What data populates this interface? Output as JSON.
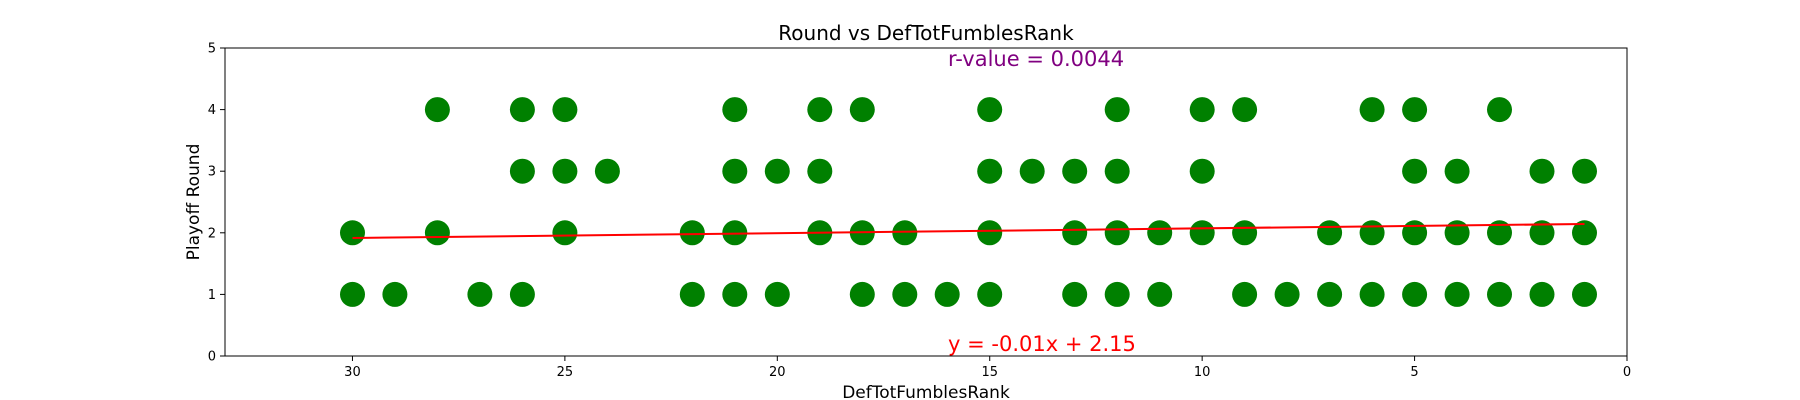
{
  "chart_data": {
    "type": "scatter",
    "title": "Round vs DefTotFumblesRank",
    "xlabel": "DefTotFumblesRank",
    "ylabel": "Playoff Round",
    "xlim": [
      33,
      0
    ],
    "ylim": [
      0,
      5
    ],
    "x_ticks": [
      30,
      25,
      20,
      15,
      10,
      5,
      0
    ],
    "y_ticks": [
      0,
      1,
      2,
      3,
      4,
      5
    ],
    "grid": false,
    "points": [
      [
        28,
        4
      ],
      [
        26,
        4
      ],
      [
        25,
        4
      ],
      [
        21,
        4
      ],
      [
        19,
        4
      ],
      [
        18,
        4
      ],
      [
        15,
        4
      ],
      [
        12,
        4
      ],
      [
        10,
        4
      ],
      [
        9,
        4
      ],
      [
        6,
        4
      ],
      [
        5,
        4
      ],
      [
        3,
        4
      ],
      [
        26,
        3
      ],
      [
        25,
        3
      ],
      [
        24,
        3
      ],
      [
        21,
        3
      ],
      [
        20,
        3
      ],
      [
        19,
        3
      ],
      [
        15,
        3
      ],
      [
        14,
        3
      ],
      [
        13,
        3
      ],
      [
        12,
        3
      ],
      [
        10,
        3
      ],
      [
        5,
        3
      ],
      [
        4,
        3
      ],
      [
        2,
        3
      ],
      [
        1,
        3
      ],
      [
        30,
        2
      ],
      [
        28,
        2
      ],
      [
        25,
        2
      ],
      [
        22,
        2
      ],
      [
        21,
        2
      ],
      [
        19,
        2
      ],
      [
        18,
        2
      ],
      [
        17,
        2
      ],
      [
        15,
        2
      ],
      [
        13,
        2
      ],
      [
        12,
        2
      ],
      [
        11,
        2
      ],
      [
        10,
        2
      ],
      [
        9,
        2
      ],
      [
        7,
        2
      ],
      [
        6,
        2
      ],
      [
        5,
        2
      ],
      [
        4,
        2
      ],
      [
        3,
        2
      ],
      [
        2,
        2
      ],
      [
        1,
        2
      ],
      [
        30,
        1
      ],
      [
        29,
        1
      ],
      [
        27,
        1
      ],
      [
        26,
        1
      ],
      [
        22,
        1
      ],
      [
        21,
        1
      ],
      [
        20,
        1
      ],
      [
        18,
        1
      ],
      [
        17,
        1
      ],
      [
        16,
        1
      ],
      [
        15,
        1
      ],
      [
        13,
        1
      ],
      [
        12,
        1
      ],
      [
        11,
        1
      ],
      [
        9,
        1
      ],
      [
        8,
        1
      ],
      [
        7,
        1
      ],
      [
        6,
        1
      ],
      [
        5,
        1
      ],
      [
        4,
        1
      ],
      [
        3,
        1
      ],
      [
        2,
        1
      ],
      [
        1,
        1
      ]
    ],
    "point_color": "#008000",
    "regression": {
      "slope": -0.0078,
      "intercept": 2.15,
      "x_range": [
        30,
        1
      ],
      "color": "#ff0000",
      "equation_label": "y = -0.01x + 2.15"
    },
    "r_value_label": "r-value = 0.0044",
    "r_value_color": "#800080"
  }
}
